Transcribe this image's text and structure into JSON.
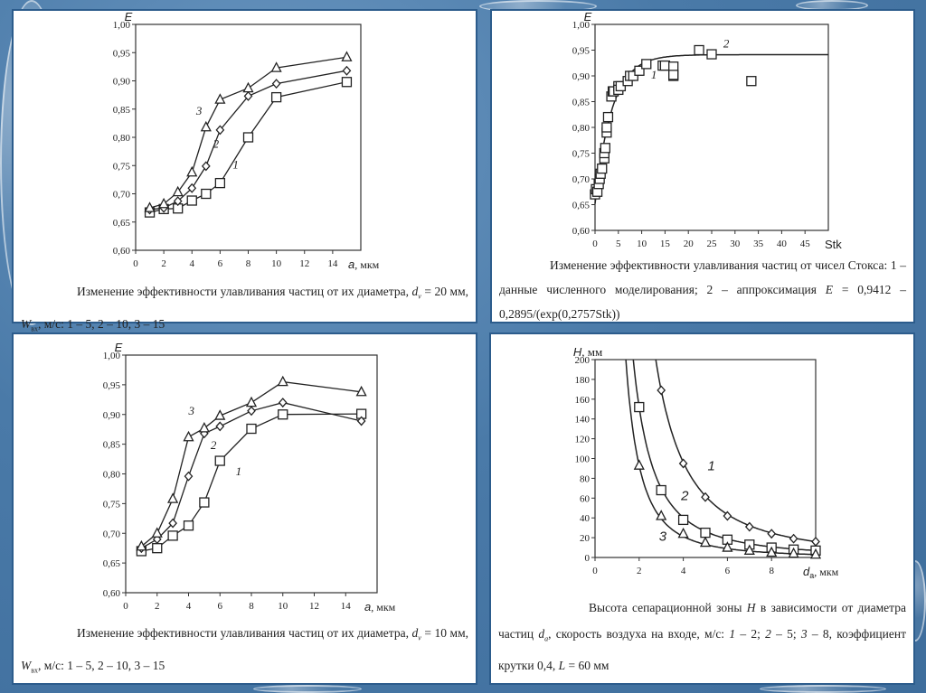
{
  "colors": {
    "panel_border": "#2c5c8c",
    "line": "#222222"
  },
  "chart_data": [
    {
      "type": "line",
      "id": "efficiency-dv20",
      "ylabel": "E",
      "xlabel": "a",
      "xunit": ", мкм",
      "xlim": [
        0,
        16
      ],
      "ylim": [
        0.6,
        1.0
      ],
      "xticks": [
        "0",
        "2",
        "4",
        "6",
        "8",
        "10",
        "12",
        "14"
      ],
      "yticks": [
        "0,60",
        "0,65",
        "0,70",
        "0,75",
        "0,80",
        "0,85",
        "0,90",
        "0,95",
        "1,00"
      ],
      "x": [
        1,
        2,
        3,
        4,
        5,
        6,
        8,
        10,
        15
      ],
      "series": [
        {
          "name": "1",
          "marker": "square",
          "values": [
            0.667,
            0.673,
            0.674,
            0.688,
            0.7,
            0.719,
            0.8,
            0.871,
            0.898
          ],
          "label_at": [
            6.9,
            0.745
          ]
        },
        {
          "name": "2",
          "marker": "diamond",
          "values": [
            0.672,
            0.675,
            0.687,
            0.71,
            0.749,
            0.813,
            0.873,
            0.895,
            0.918
          ],
          "label_at": [
            5.5,
            0.782
          ]
        },
        {
          "name": "3",
          "marker": "triangle",
          "values": [
            0.675,
            0.682,
            0.703,
            0.738,
            0.818,
            0.867,
            0.887,
            0.923,
            0.942
          ],
          "label_at": [
            4.3,
            0.84
          ]
        }
      ],
      "caption": [
        {
          "t": "Изменение эффективности улавливания частиц от их диаметра, "
        },
        {
          "t": "d",
          "i": true
        },
        {
          "t": "v",
          "sub": true,
          "i": true
        },
        {
          "t": " = 20 мм, "
        },
        {
          "t": "W",
          "i": true
        },
        {
          "t": "вх",
          "sub": true
        },
        {
          "t": ", м/с: 1 – 5, 2 – 10, 3 – 15"
        }
      ]
    },
    {
      "type": "scatter",
      "id": "efficiency-stokes",
      "ylabel": "E",
      "xlabel": "Stk",
      "xunit": "",
      "xlim": [
        0,
        50
      ],
      "ylim": [
        0.6,
        1.0
      ],
      "xticks": [
        "0",
        "5",
        "10",
        "15",
        "20",
        "25",
        "30",
        "35",
        "40",
        "45"
      ],
      "yticks": [
        "0,60",
        "0,65",
        "0,70",
        "0,75",
        "0,80",
        "0,85",
        "0,90",
        "0,95",
        "1,00"
      ],
      "points": [
        [
          0,
          0.67
        ],
        [
          0.2,
          0.68
        ],
        [
          0.5,
          0.675
        ],
        [
          0.8,
          0.69
        ],
        [
          1,
          0.7
        ],
        [
          1.2,
          0.71
        ],
        [
          1.5,
          0.72
        ],
        [
          2,
          0.74
        ],
        [
          2,
          0.75
        ],
        [
          2.2,
          0.76
        ],
        [
          2.5,
          0.79
        ],
        [
          2.5,
          0.8
        ],
        [
          2.8,
          0.82
        ],
        [
          3.5,
          0.86
        ],
        [
          3.8,
          0.87
        ],
        [
          4,
          0.87
        ],
        [
          5,
          0.88
        ],
        [
          5,
          0.873
        ],
        [
          5.5,
          0.88
        ],
        [
          7,
          0.89
        ],
        [
          7.5,
          0.9
        ],
        [
          8.2,
          0.9
        ],
        [
          9.5,
          0.91
        ],
        [
          11,
          0.923
        ],
        [
          14.5,
          0.92
        ],
        [
          15,
          0.92
        ],
        [
          16.8,
          0.918
        ],
        [
          16.8,
          0.9
        ],
        [
          16.8,
          0.902
        ],
        [
          22.3,
          0.95
        ],
        [
          25,
          0.942
        ],
        [
          33.5,
          0.89
        ]
      ],
      "fit": {
        "a": 0.9412,
        "b": 0.2895,
        "c": 0.2757
      },
      "labels": [
        {
          "name": "1",
          "at": [
            12,
            0.895
          ]
        },
        {
          "name": "2",
          "at": [
            27.5,
            0.955
          ]
        }
      ],
      "caption": [
        {
          "t": "Изменение эффективности улавливания частиц от чисел Стокса: 1 – данные численного моделирования; 2 – аппроксимация "
        },
        {
          "t": "E",
          "i": true
        },
        {
          "t": " = 0,9412 – 0,2895/(exp(0,2757Stk))"
        }
      ]
    },
    {
      "type": "line",
      "id": "efficiency-dv10",
      "ylabel": "E",
      "xlabel": "a",
      "xunit": ", мкм",
      "xlim": [
        0,
        16
      ],
      "ylim": [
        0.6,
        1.0
      ],
      "xticks": [
        "0",
        "2",
        "4",
        "6",
        "8",
        "10",
        "12",
        "14"
      ],
      "yticks": [
        "0,60",
        "0,65",
        "0,70",
        "0,75",
        "0,80",
        "0,85",
        "0,90",
        "0,95",
        "1,00"
      ],
      "x": [
        1,
        2,
        3,
        4,
        5,
        6,
        8,
        10,
        15
      ],
      "series": [
        {
          "name": "1",
          "marker": "square",
          "values": [
            0.67,
            0.675,
            0.696,
            0.713,
            0.752,
            0.822,
            0.876,
            0.9,
            0.901
          ],
          "label_at": [
            7,
            0.798
          ]
        },
        {
          "name": "2",
          "marker": "diamond",
          "values": [
            0.675,
            0.69,
            0.717,
            0.796,
            0.868,
            0.88,
            0.906,
            0.92,
            0.889
          ],
          "label_at": [
            5.4,
            0.842
          ]
        },
        {
          "name": "3",
          "marker": "triangle",
          "values": [
            0.678,
            0.7,
            0.758,
            0.862,
            0.877,
            0.898,
            0.92,
            0.955,
            0.938
          ],
          "label_at": [
            4,
            0.9
          ]
        }
      ],
      "caption": [
        {
          "t": "Изменение эффективности улавливания частиц от их диаметра, "
        },
        {
          "t": "d",
          "i": true
        },
        {
          "t": "v",
          "sub": true,
          "i": true
        },
        {
          "t": " = 10 мм, "
        },
        {
          "t": "W",
          "i": true
        },
        {
          "t": "вх",
          "sub": true
        },
        {
          "t": ", м/с: 1 – 5, 2 – 10, 3 – 15"
        }
      ]
    },
    {
      "type": "line",
      "id": "separation-height",
      "ylabel": "H",
      "yunit": ", мм",
      "xlabel": "d",
      "xsub": "a",
      "xunit": ", мкм",
      "xlim": [
        0,
        10
      ],
      "ylim": [
        0,
        200
      ],
      "xticks": [
        "0",
        "2",
        "4",
        "6",
        "8"
      ],
      "yticks": [
        "0",
        "20",
        "40",
        "60",
        "80",
        "100",
        "120",
        "140",
        "160",
        "180",
        "200"
      ],
      "series": [
        {
          "name": "1",
          "marker": "diamond",
          "x": [
            3,
            4,
            5,
            6,
            7,
            8,
            9,
            10
          ],
          "values": [
            169,
            95,
            61,
            42,
            31,
            24,
            19,
            16
          ],
          "label_at": [
            5.1,
            88
          ]
        },
        {
          "name": "2",
          "marker": "square",
          "x": [
            2,
            3,
            4,
            5,
            6,
            7,
            8,
            9,
            10
          ],
          "values": [
            152,
            68,
            38,
            25,
            18,
            13,
            10,
            8,
            7
          ],
          "label_at": [
            3.9,
            58
          ]
        },
        {
          "name": "3",
          "marker": "triangle",
          "x": [
            2,
            3,
            4,
            5,
            6,
            7,
            8,
            9,
            10
          ],
          "values": [
            93,
            42,
            24,
            15,
            10,
            7,
            5,
            4,
            3
          ],
          "label_at": [
            2.9,
            17
          ]
        }
      ],
      "caption": [
        {
          "t": "Высота сепарационной зоны "
        },
        {
          "t": "H",
          "i": true
        },
        {
          "t": " в зависимости от диаметра частиц "
        },
        {
          "t": "d",
          "i": true
        },
        {
          "t": "a",
          "sub": true,
          "i": true
        },
        {
          "t": ", скорость воздуха на входе, м/с: "
        },
        {
          "t": "1",
          "i": true
        },
        {
          "t": " – 2; "
        },
        {
          "t": "2",
          "i": true
        },
        {
          "t": " – 5; "
        },
        {
          "t": "3",
          "i": true
        },
        {
          "t": " – 8, коэффициент крутки 0,4, "
        },
        {
          "t": "L",
          "i": true
        },
        {
          "t": " = 60 мм"
        }
      ]
    }
  ]
}
